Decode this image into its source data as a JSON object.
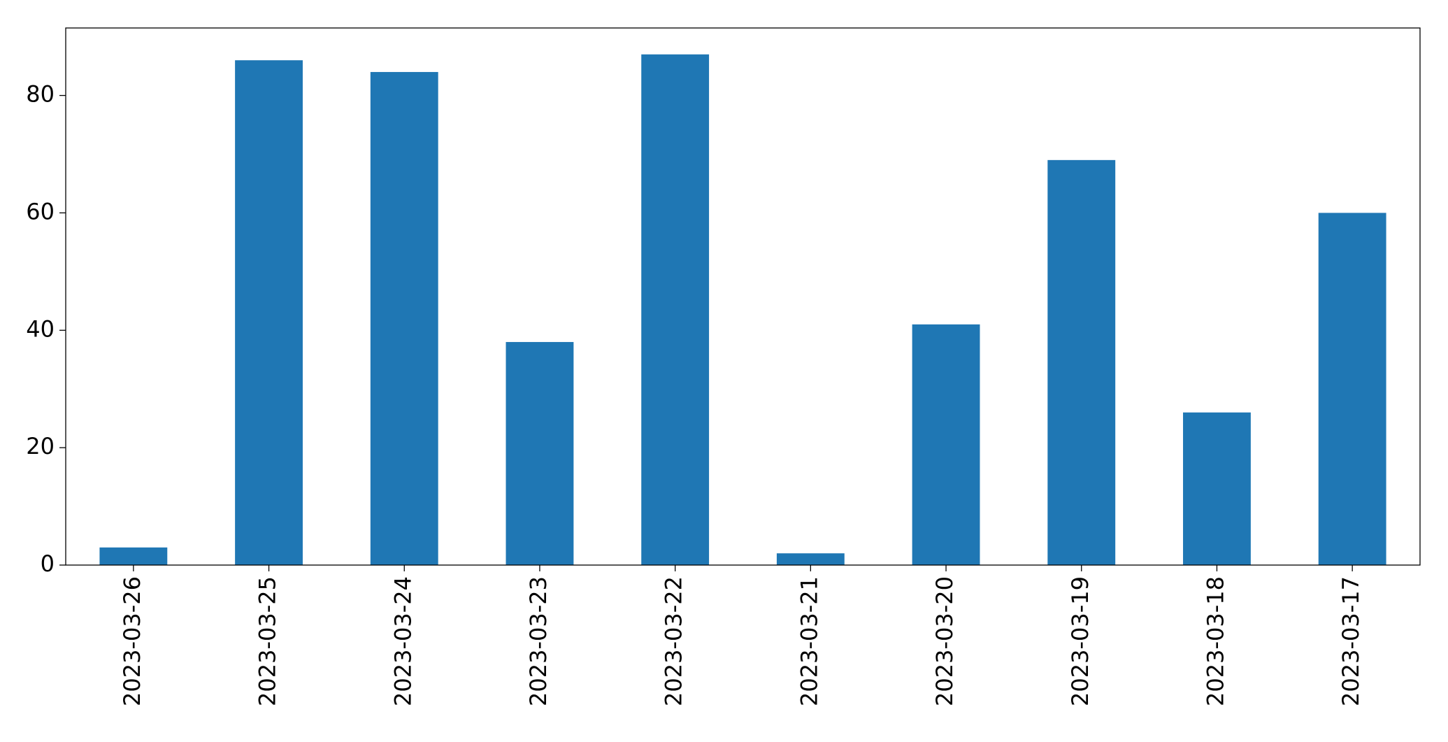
{
  "chart_data": {
    "type": "bar",
    "categories": [
      "2023-03-26",
      "2023-03-25",
      "2023-03-24",
      "2023-03-23",
      "2023-03-22",
      "2023-03-21",
      "2023-03-20",
      "2023-03-19",
      "2023-03-18",
      "2023-03-17"
    ],
    "values": [
      3,
      86,
      84,
      38,
      87,
      2,
      41,
      69,
      26,
      60
    ],
    "color": "#1f77b4",
    "ylim": [
      0,
      91.5
    ],
    "yticks": [
      0,
      20,
      40,
      60,
      80
    ],
    "grid": false
  }
}
